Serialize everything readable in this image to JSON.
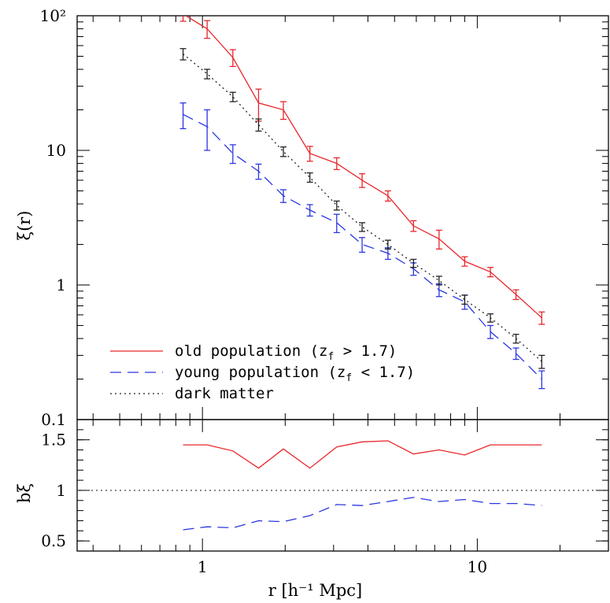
{
  "chart_data": [
    {
      "type": "line",
      "xlabel": "r [h⁻¹ Mpc]",
      "ylabel": "ξ(r)",
      "xscale": "log",
      "yscale": "log",
      "xlim": [
        0.35,
        30
      ],
      "ylim": [
        0.1,
        100
      ],
      "ytick_labels": [
        "0.1",
        "1",
        "10",
        "10²"
      ],
      "legend_position": "bottom-left",
      "x": [
        0.85,
        1.04,
        1.29,
        1.6,
        1.97,
        2.46,
        3.08,
        3.81,
        4.73,
        5.86,
        7.26,
        9.0,
        11.16,
        13.83,
        17.16
      ],
      "series": [
        {
          "name": "old population (z_f > 1.7)",
          "color": "#e8262b",
          "style": "solid",
          "values": [
            103,
            80,
            49,
            22.5,
            20,
            9.5,
            8,
            6,
            4.6,
            2.75,
            2.2,
            1.5,
            1.25,
            0.85,
            0.57
          ],
          "err": [
            12,
            12,
            7,
            6,
            3,
            1.2,
            0.8,
            0.7,
            0.4,
            0.25,
            0.35,
            0.12,
            0.1,
            0.07,
            0.06
          ]
        },
        {
          "name": "young population (z_f < 1.7)",
          "color": "#2b36e0",
          "style": "dashed",
          "values": [
            18.5,
            15,
            9.5,
            7,
            4.6,
            3.6,
            2.9,
            2.0,
            1.72,
            1.32,
            0.92,
            0.75,
            0.45,
            0.31,
            0.2
          ],
          "err": [
            4,
            5,
            1.5,
            0.9,
            0.5,
            0.35,
            0.45,
            0.25,
            0.17,
            0.14,
            0.1,
            0.09,
            0.05,
            0.03,
            0.03
          ]
        },
        {
          "name": "dark matter",
          "color": "#222222",
          "style": "dotted",
          "values": [
            52,
            37,
            25,
            15.5,
            9.8,
            6.3,
            3.9,
            2.7,
            2.0,
            1.45,
            1.08,
            0.78,
            0.57,
            0.4,
            0.27
          ],
          "err": [
            5,
            3,
            2,
            1.6,
            0.8,
            0.5,
            0.3,
            0.2,
            0.15,
            0.1,
            0.08,
            0.06,
            0.04,
            0.03,
            0.03
          ]
        }
      ]
    },
    {
      "type": "line",
      "xlabel": "r [h⁻¹ Mpc]",
      "ylabel": "bξ",
      "xscale": "log",
      "xlim": [
        0.35,
        30
      ],
      "ylim": [
        0.4,
        1.7
      ],
      "xtick_labels": [
        "1",
        "10"
      ],
      "ytick_labels": [
        "0.5",
        "1",
        "1.5"
      ],
      "reference_line": 1,
      "x": [
        0.85,
        1.04,
        1.29,
        1.6,
        1.97,
        2.46,
        3.08,
        3.81,
        4.73,
        5.86,
        7.26,
        9.0,
        11.16,
        13.83,
        17.16
      ],
      "series": [
        {
          "color": "#e8262b",
          "style": "solid",
          "values": [
            1.45,
            1.45,
            1.39,
            1.22,
            1.41,
            1.22,
            1.43,
            1.48,
            1.49,
            1.36,
            1.4,
            1.35,
            1.45,
            1.45,
            1.45
          ]
        },
        {
          "color": "#2b36e0",
          "style": "dashed",
          "values": [
            0.61,
            0.64,
            0.63,
            0.7,
            0.69,
            0.75,
            0.86,
            0.85,
            0.89,
            0.93,
            0.89,
            0.91,
            0.87,
            0.87,
            0.85
          ]
        }
      ]
    }
  ]
}
